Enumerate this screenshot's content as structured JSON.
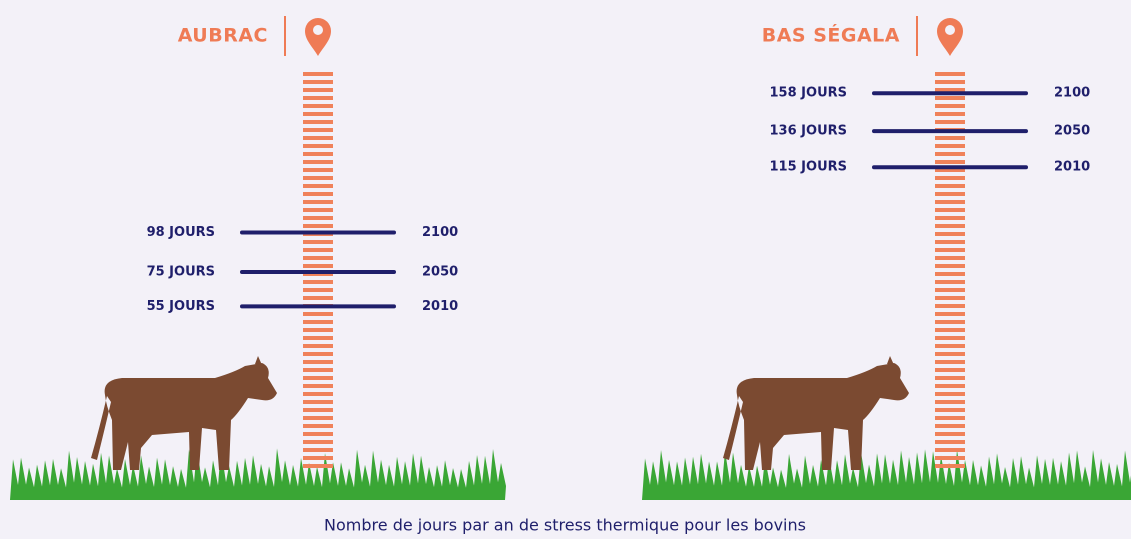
{
  "chart_data": [
    {
      "type": "thermometer",
      "title": "AUBRAC",
      "categories": [
        "2100",
        "2050",
        "2010"
      ],
      "values": [
        98,
        75,
        55
      ],
      "value_labels": [
        "98 JOURS",
        "75 JOURS",
        "55 JOURS"
      ],
      "color": "#1f1f6b"
    },
    {
      "type": "thermometer",
      "title": "BAS SÉGALA",
      "categories": [
        "2100",
        "2050",
        "2010"
      ],
      "values": [
        158,
        136,
        115
      ],
      "value_labels": [
        "158 JOURS",
        "136 JOURS",
        "115 JOURS"
      ],
      "color": "#1f1f6b"
    }
  ],
  "caption": "Nombre de jours par an de stress thermique pour les bovins"
}
